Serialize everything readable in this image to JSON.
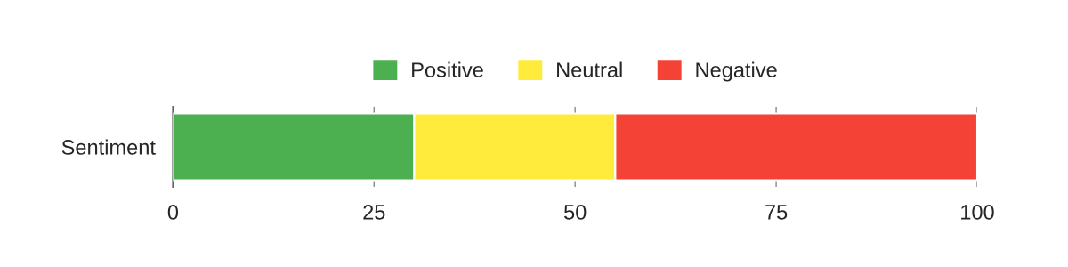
{
  "chart_data": {
    "type": "bar",
    "orientation": "horizontal",
    "stacked": true,
    "categories": [
      "Sentiment"
    ],
    "series": [
      {
        "name": "Positive",
        "color": "#4caf50",
        "values": [
          30
        ]
      },
      {
        "name": "Neutral",
        "color": "#ffeb3b",
        "values": [
          25
        ]
      },
      {
        "name": "Negative",
        "color": "#f44336",
        "values": [
          45
        ]
      }
    ],
    "xlim": [
      0,
      100
    ],
    "xticks": [
      0,
      25,
      50,
      75,
      100
    ],
    "grid": "x",
    "legend": "top"
  }
}
